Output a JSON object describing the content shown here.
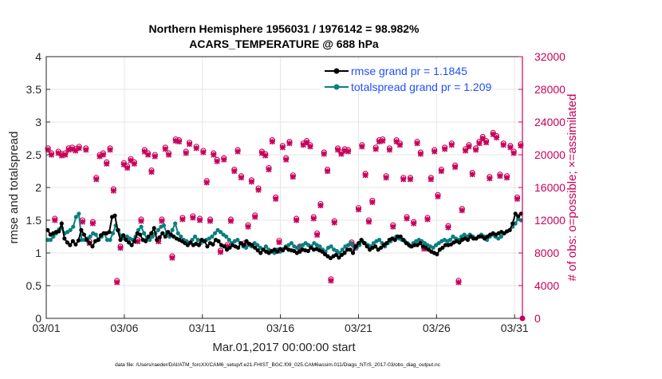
{
  "chart_data": {
    "type": "line",
    "title_line1": "Northern Hemisphere 1956031 / 1976142 = 98.982%",
    "title_line2": "ACARS_TEMPERATURE @ 688 hPa",
    "xlabel": "Mar.01,2017 00:00:00 start",
    "ylabel_left": "rmse and totalspread",
    "ylabel_right": "# of obs: o=possible; ×=assimilated",
    "footer": "data file: /Users/raeder/DAI/ATM_forcXX/CAM6_setup/f.e21.FHIST_BGC.f09_025.CAM6assim.011/Diags_NTrS_2017-03/obs_diag_output.nc",
    "x_ticks": [
      "03/01",
      "03/06",
      "03/11",
      "03/16",
      "03/21",
      "03/26",
      "03/31"
    ],
    "x_tick_days": [
      1,
      6,
      11,
      16,
      21,
      26,
      31
    ],
    "xlim": [
      1,
      31.5
    ],
    "y_left_ticks": [
      "0",
      "0.5",
      "1",
      "1.5",
      "2",
      "2.5",
      "3",
      "3.5",
      "4"
    ],
    "y_left_lim": [
      0,
      4
    ],
    "y_right_ticks": [
      "0",
      "4000",
      "8000",
      "12000",
      "16000",
      "20000",
      "24000",
      "28000",
      "32000"
    ],
    "y_right_lim": [
      0,
      32000
    ],
    "series": [
      {
        "name": "rmse grand pr = 1.1845",
        "color": "#000000",
        "axis": "left",
        "values": [
          1.35,
          1.28,
          1.3,
          1.32,
          1.33,
          1.45,
          1.22,
          1.16,
          1.12,
          1.18,
          1.13,
          1.19,
          1.35,
          1.28,
          1.2,
          1.15,
          1.1,
          1.18,
          1.2,
          1.27,
          1.3,
          1.3,
          1.32,
          1.55,
          1.57,
          1.35,
          1.2,
          1.27,
          1.2,
          1.16,
          1.12,
          1.18,
          1.3,
          1.28,
          1.2,
          1.18,
          1.25,
          1.3,
          1.38,
          1.2,
          1.24,
          1.3,
          1.25,
          1.32,
          1.28,
          1.25,
          1.22,
          1.2,
          1.18,
          1.15,
          1.12,
          1.16,
          1.12,
          1.14,
          1.12,
          1.2,
          1.18,
          1.1,
          1.15,
          1.13,
          1.2,
          1.18,
          1.12,
          1.1,
          1.05,
          1.08,
          1.12,
          1.1,
          1.08,
          1.15,
          1.12,
          1.18,
          1.14,
          1.12,
          1.08,
          1.04,
          1.0,
          1.05,
          1.02,
          1.0,
          1.03,
          1.05,
          1.02,
          1.06,
          1.04,
          1.08,
          1.05,
          1.04,
          1.03,
          1.0,
          1.02,
          1.05,
          1.04,
          1.03,
          1.08,
          1.05,
          1.06,
          1.04,
          1.02,
          0.98,
          0.95,
          0.92,
          0.95,
          0.97,
          0.93,
          0.97,
          1.0,
          1.05,
          1.05,
          1.0,
          1.1,
          1.15,
          1.2,
          1.15,
          1.1,
          1.05,
          1.08,
          1.1,
          1.05,
          1.08,
          1.12,
          1.15,
          1.2,
          1.22,
          1.2,
          1.25,
          1.25,
          1.2,
          1.15,
          1.12,
          1.1,
          1.12,
          1.12,
          1.15,
          1.1,
          1.08,
          1.05,
          1.02,
          1.0,
          0.98,
          1.05,
          1.08,
          1.12,
          1.12,
          1.13,
          1.16,
          1.18,
          1.16,
          1.2,
          1.22,
          1.2,
          1.25,
          1.22,
          1.22,
          1.25,
          1.25,
          1.22,
          1.25,
          1.28,
          1.3,
          1.28,
          1.3,
          1.32,
          1.3,
          1.33,
          1.35,
          1.45,
          1.6,
          1.56,
          1.6
        ]
      },
      {
        "name": "totalspread grand pr = 1.209",
        "color": "#0a7f7f",
        "axis": "left",
        "values": [
          1.2,
          1.2,
          1.25,
          1.3,
          1.36,
          1.38,
          1.3,
          1.32,
          1.35,
          1.4,
          1.55,
          1.6,
          1.2,
          1.2,
          1.22,
          1.25,
          1.3,
          1.28,
          1.2,
          1.25,
          1.3,
          1.2,
          1.2,
          1.3,
          1.42,
          1.35,
          1.25,
          1.22,
          1.25,
          1.22,
          1.2,
          1.25,
          1.35,
          1.4,
          1.3,
          1.22,
          1.2,
          1.25,
          1.3,
          1.35,
          1.4,
          1.42,
          1.3,
          1.25,
          1.35,
          1.45,
          1.3,
          1.25,
          1.2,
          1.18,
          1.15,
          1.2,
          1.25,
          1.2,
          1.15,
          1.18,
          1.2,
          1.22,
          1.25,
          1.3,
          1.35,
          1.32,
          1.28,
          1.25,
          1.2,
          1.15,
          1.18,
          1.2,
          1.15,
          1.1,
          1.08,
          1.12,
          1.1,
          1.15,
          1.12,
          1.08,
          1.05,
          1.1,
          1.05,
          1.02,
          1.0,
          1.05,
          1.02,
          1.06,
          1.1,
          1.12,
          1.15,
          1.1,
          1.08,
          1.1,
          1.12,
          1.15,
          1.12,
          1.1,
          1.15,
          1.12,
          1.1,
          1.05,
          1.02,
          1.08,
          1.1,
          1.05,
          1.03,
          1.0,
          1.05,
          1.1,
          1.12,
          1.15,
          1.1,
          1.08,
          1.12,
          1.18,
          1.15,
          1.12,
          1.1,
          1.15,
          1.18,
          1.2,
          1.15,
          1.1,
          1.15,
          1.18,
          1.22,
          1.25,
          1.22,
          1.2,
          1.18,
          1.15,
          1.1,
          1.15,
          1.18,
          1.2,
          1.18,
          1.15,
          1.12,
          1.1,
          1.08,
          1.12,
          1.15,
          1.18,
          1.2,
          1.18,
          1.2,
          1.25,
          1.22,
          1.2,
          1.25,
          1.28,
          1.25,
          1.28,
          1.25,
          1.22,
          1.25,
          1.28,
          1.25,
          1.2,
          1.25,
          1.28,
          1.25,
          1.22,
          1.25,
          1.3,
          1.33,
          1.35,
          1.4,
          1.45,
          1.52,
          1.5
        ]
      },
      {
        "name": "possible obs",
        "color": "#c8005a",
        "axis": "right",
        "marker": "o",
        "values": [
          20800,
          20200,
          12200,
          20400,
          20100,
          20200,
          20800,
          20900,
          20700,
          21000,
          12000,
          20800,
          9400,
          11800,
          17200,
          20000,
          20200,
          19100,
          20800,
          15800,
          4600,
          8800,
          19000,
          18600,
          19500,
          19100,
          9600,
          12100,
          20600,
          20200,
          18100,
          20000,
          9600,
          12100,
          20900,
          20200,
          7600,
          21900,
          21800,
          12300,
          20400,
          21500,
          12500,
          21000,
          12200,
          20500,
          16800,
          12100,
          20200,
          19400,
          8300,
          19600,
          9000,
          12100,
          18200,
          20600,
          17400,
          9200,
          11400,
          16900,
          12600,
          15900,
          20400,
          20100,
          18400,
          21800,
          14800,
          9500,
          21100,
          19600,
          21600,
          17500,
          12200,
          8800,
          21400,
          21700,
          21200,
          12400,
          10400,
          14000,
          20300,
          18200,
          4800,
          11900,
          20800,
          20300,
          20700,
          20600,
          9300,
          8800,
          13500,
          21200,
          17700,
          12000,
          14400,
          20900,
          21800,
          21900,
          17400,
          20800,
          11400,
          21800,
          21400,
          17200,
          12400,
          17200,
          11800,
          21600,
          20300,
          8700,
          12300,
          17200,
          20600,
          15100,
          18200,
          20900,
          11300,
          21400,
          18700,
          4600,
          13400,
          20700,
          21200,
          17800,
          20800,
          21600,
          22200,
          21700,
          17300,
          22700,
          22300,
          17600,
          21400,
          17400,
          21100,
          20400,
          14800,
          21300
        ]
      },
      {
        "name": "assimilated obs",
        "color": "#c8005a",
        "axis": "right",
        "marker": "x",
        "values": [
          20600,
          20000,
          12000,
          20200,
          19900,
          20000,
          20600,
          20700,
          20500,
          20800,
          11800,
          20600,
          9200,
          11600,
          17000,
          19800,
          20000,
          18900,
          20600,
          15600,
          4400,
          8600,
          18800,
          18400,
          19300,
          18900,
          9400,
          11900,
          20400,
          20000,
          17900,
          19800,
          9400,
          11900,
          20700,
          20000,
          7400,
          21700,
          21600,
          12100,
          20200,
          21300,
          12300,
          20800,
          12000,
          20300,
          16600,
          11900,
          20000,
          19200,
          8100,
          19400,
          8800,
          11900,
          18000,
          20400,
          17200,
          9000,
          11200,
          16700,
          12400,
          15700,
          20200,
          19900,
          18200,
          21600,
          14600,
          9300,
          20900,
          19400,
          21400,
          17300,
          12000,
          8600,
          21200,
          21500,
          21000,
          12200,
          10200,
          13800,
          20100,
          18000,
          4600,
          11700,
          20600,
          20100,
          20500,
          20400,
          9100,
          8600,
          13300,
          21000,
          17500,
          11800,
          14200,
          20700,
          21600,
          21700,
          17200,
          20600,
          11200,
          21600,
          21200,
          17000,
          12200,
          17000,
          11600,
          21400,
          20100,
          8500,
          12100,
          17000,
          20400,
          14900,
          18000,
          20700,
          11100,
          21200,
          18500,
          4400,
          13200,
          20500,
          21000,
          17600,
          20600,
          21400,
          22000,
          21500,
          17100,
          22500,
          22100,
          17400,
          21200,
          17200,
          20900,
          20200,
          14600,
          21100
        ]
      }
    ]
  }
}
